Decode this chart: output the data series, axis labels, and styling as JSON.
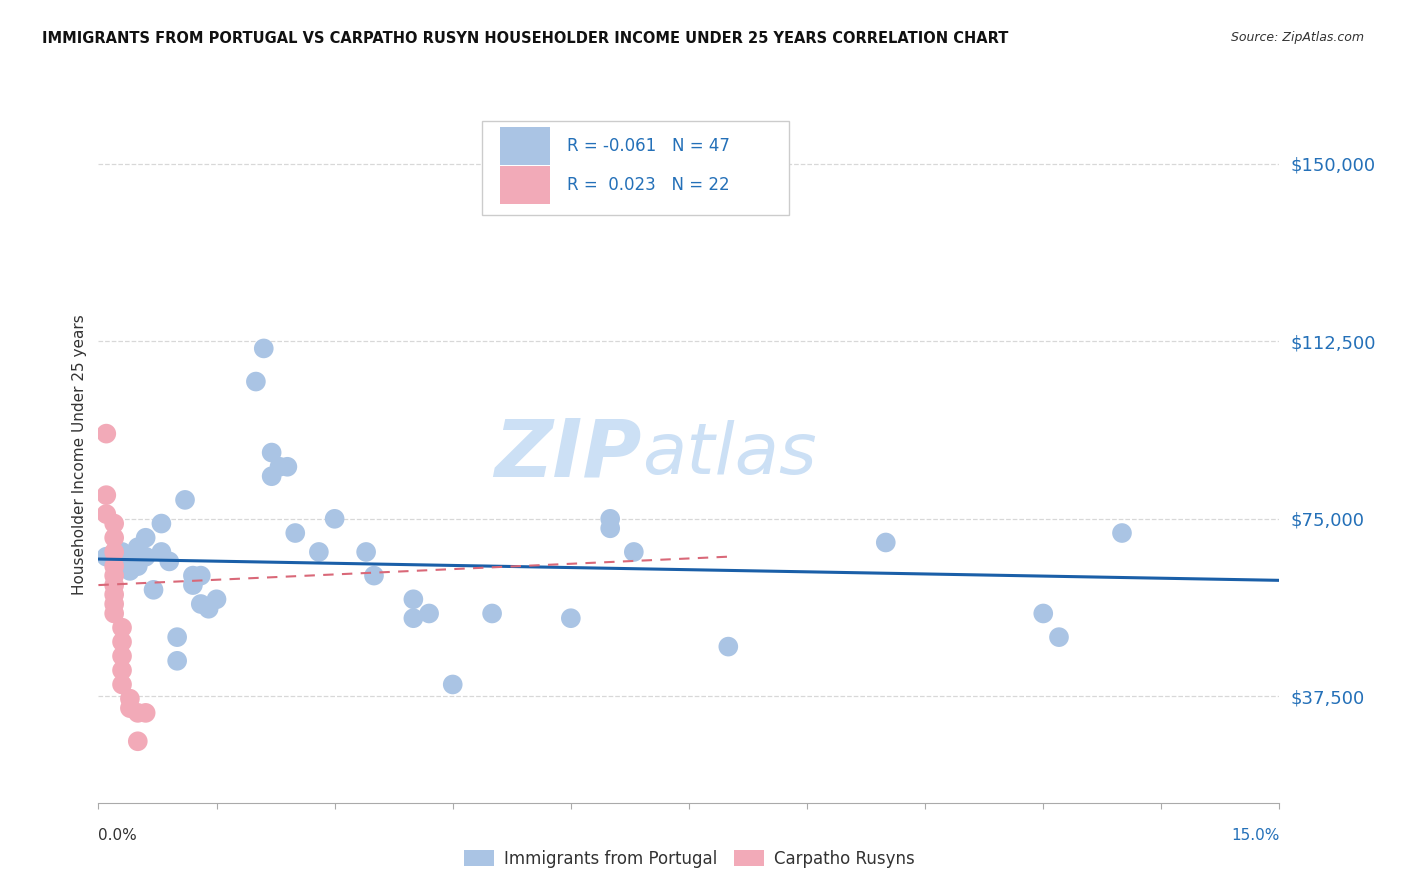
{
  "title": "IMMIGRANTS FROM PORTUGAL VS CARPATHO RUSYN HOUSEHOLDER INCOME UNDER 25 YEARS CORRELATION CHART",
  "source": "Source: ZipAtlas.com",
  "ylabel": "Householder Income Under 25 years",
  "xlim": [
    0.0,
    0.15
  ],
  "ylim": [
    15000,
    162000
  ],
  "yticks": [
    37500,
    75000,
    112500,
    150000
  ],
  "ytick_labels": [
    "$37,500",
    "$75,000",
    "$112,500",
    "$150,000"
  ],
  "xtick_positions": [
    0.0,
    0.015,
    0.03,
    0.045,
    0.06,
    0.075,
    0.09,
    0.105,
    0.12,
    0.135,
    0.15
  ],
  "legend_R1": "-0.061",
  "legend_N1": "47",
  "legend_R2": "0.023",
  "legend_N2": "22",
  "blue_color": "#aac4e4",
  "pink_color": "#f2aab8",
  "line_blue": "#1a5fa8",
  "line_pink": "#d96878",
  "watermark_color": "#cce0f5",
  "blue_scatter": [
    [
      0.001,
      67000
    ],
    [
      0.002,
      66000
    ],
    [
      0.003,
      68000
    ],
    [
      0.004,
      64000
    ],
    [
      0.004,
      67000
    ],
    [
      0.005,
      69000
    ],
    [
      0.005,
      65000
    ],
    [
      0.006,
      71000
    ],
    [
      0.006,
      67000
    ],
    [
      0.007,
      60000
    ],
    [
      0.008,
      74000
    ],
    [
      0.008,
      68000
    ],
    [
      0.009,
      66000
    ],
    [
      0.01,
      45000
    ],
    [
      0.01,
      50000
    ],
    [
      0.011,
      79000
    ],
    [
      0.012,
      63000
    ],
    [
      0.012,
      61000
    ],
    [
      0.013,
      63000
    ],
    [
      0.013,
      57000
    ],
    [
      0.014,
      56000
    ],
    [
      0.015,
      58000
    ],
    [
      0.02,
      104000
    ],
    [
      0.021,
      111000
    ],
    [
      0.022,
      89000
    ],
    [
      0.022,
      84000
    ],
    [
      0.023,
      86000
    ],
    [
      0.024,
      86000
    ],
    [
      0.025,
      72000
    ],
    [
      0.028,
      68000
    ],
    [
      0.03,
      75000
    ],
    [
      0.034,
      68000
    ],
    [
      0.035,
      63000
    ],
    [
      0.04,
      58000
    ],
    [
      0.04,
      54000
    ],
    [
      0.042,
      55000
    ],
    [
      0.045,
      40000
    ],
    [
      0.05,
      55000
    ],
    [
      0.06,
      54000
    ],
    [
      0.065,
      75000
    ],
    [
      0.065,
      73000
    ],
    [
      0.068,
      68000
    ],
    [
      0.08,
      48000
    ],
    [
      0.1,
      70000
    ],
    [
      0.12,
      55000
    ],
    [
      0.122,
      50000
    ],
    [
      0.13,
      72000
    ]
  ],
  "pink_scatter": [
    [
      0.001,
      93000
    ],
    [
      0.001,
      80000
    ],
    [
      0.001,
      76000
    ],
    [
      0.002,
      74000
    ],
    [
      0.002,
      71000
    ],
    [
      0.002,
      68000
    ],
    [
      0.002,
      65000
    ],
    [
      0.002,
      63000
    ],
    [
      0.002,
      61000
    ],
    [
      0.002,
      59000
    ],
    [
      0.002,
      57000
    ],
    [
      0.002,
      55000
    ],
    [
      0.003,
      52000
    ],
    [
      0.003,
      49000
    ],
    [
      0.003,
      46000
    ],
    [
      0.003,
      43000
    ],
    [
      0.003,
      40000
    ],
    [
      0.004,
      37000
    ],
    [
      0.004,
      35000
    ],
    [
      0.005,
      28000
    ],
    [
      0.005,
      34000
    ],
    [
      0.006,
      34000
    ]
  ],
  "blue_trendline_x": [
    0.0,
    0.15
  ],
  "blue_trendline_y": [
    66500,
    62000
  ],
  "pink_trendline_x": [
    0.0,
    0.08
  ],
  "pink_trendline_y": [
    61000,
    67000
  ]
}
